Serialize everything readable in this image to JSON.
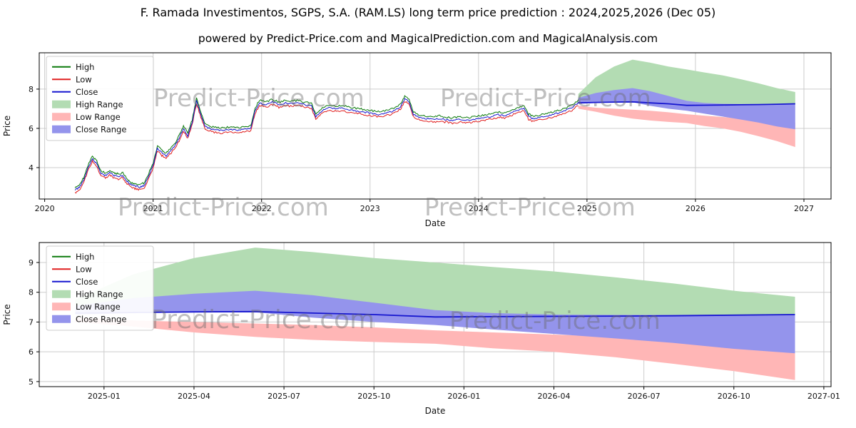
{
  "title": "F. Ramada Investimentos, SGPS, S.A. (RAM.LS) long term price prediction : 2024,2025,2026 (Dec 05)",
  "subtitle": "powered by Predict-Price.com and MagicalPrediction.com and MagicalAnalysis.com",
  "watermark_text": "Predict-Price.com",
  "colors": {
    "high": "#0b7a0b",
    "low": "#e01f1f",
    "close": "#1717cf",
    "high_range": "#b3dcb3",
    "low_range": "#ffb6b6",
    "close_range": "#9494ec",
    "grid": "#cccccc",
    "axis": "#000000",
    "tick_text": "#111111"
  },
  "chart_data": [
    {
      "type": "line",
      "name": "price-history-and-forecast",
      "title": "",
      "xlabel": "Date",
      "ylabel": "Price",
      "xlim": [
        2019.95,
        2027.25
      ],
      "ylim": [
        2.4,
        9.85
      ],
      "yticks": [
        4,
        6,
        8
      ],
      "xticks": [
        {
          "v": 2020,
          "label": "2020"
        },
        {
          "v": 2021,
          "label": "2021"
        },
        {
          "v": 2022,
          "label": "2022"
        },
        {
          "v": 2023,
          "label": "2023"
        },
        {
          "v": 2024,
          "label": "2024"
        },
        {
          "v": 2025,
          "label": "2025"
        },
        {
          "v": 2026,
          "label": "2026"
        },
        {
          "v": 2027,
          "label": "2027"
        }
      ],
      "legend": [
        "High",
        "Low",
        "Close",
        "High Range",
        "Low Range",
        "Close Range"
      ],
      "legend_position": "upper left",
      "grid": true,
      "history": {
        "x": [
          2020.28,
          2020.32,
          2020.36,
          2020.4,
          2020.44,
          2020.48,
          2020.52,
          2020.56,
          2020.6,
          2020.64,
          2020.68,
          2020.72,
          2020.76,
          2020.8,
          2020.84,
          2020.88,
          2020.92,
          2020.96,
          2021.0,
          2021.04,
          2021.08,
          2021.12,
          2021.16,
          2021.2,
          2021.24,
          2021.28,
          2021.32,
          2021.36,
          2021.4,
          2021.44,
          2021.48,
          2021.54,
          2021.6,
          2021.66,
          2021.72,
          2021.78,
          2021.84,
          2021.9,
          2021.94,
          2021.98,
          2022.04,
          2022.1,
          2022.16,
          2022.22,
          2022.28,
          2022.34,
          2022.4,
          2022.46,
          2022.5,
          2022.56,
          2022.62,
          2022.68,
          2022.74,
          2022.8,
          2022.86,
          2022.92,
          2022.98,
          2023.04,
          2023.1,
          2023.16,
          2023.22,
          2023.28,
          2023.32,
          2023.36,
          2023.4,
          2023.46,
          2023.52,
          2023.58,
          2023.64,
          2023.7,
          2023.76,
          2023.82,
          2023.88,
          2023.94,
          2024.0,
          2024.06,
          2024.12,
          2024.18,
          2024.24,
          2024.3,
          2024.36,
          2024.42,
          2024.46,
          2024.5,
          2024.56,
          2024.62,
          2024.68,
          2024.74,
          2024.8,
          2024.86,
          2024.92
        ],
        "close": [
          2.85,
          3.0,
          3.35,
          4.0,
          4.45,
          4.2,
          3.7,
          3.6,
          3.75,
          3.6,
          3.55,
          3.6,
          3.3,
          3.1,
          3.05,
          3.0,
          3.1,
          3.6,
          4.1,
          5.0,
          4.75,
          4.6,
          4.85,
          5.1,
          5.5,
          6.0,
          5.6,
          6.3,
          7.4,
          6.7,
          6.1,
          5.95,
          5.9,
          5.9,
          5.95,
          5.9,
          5.95,
          6.0,
          6.9,
          7.3,
          7.2,
          7.35,
          7.2,
          7.3,
          7.25,
          7.3,
          7.2,
          7.15,
          6.6,
          6.9,
          7.05,
          7.0,
          7.05,
          6.95,
          6.9,
          6.85,
          6.8,
          6.75,
          6.7,
          6.8,
          6.9,
          7.1,
          7.5,
          7.35,
          6.7,
          6.55,
          6.5,
          6.45,
          6.5,
          6.45,
          6.4,
          6.45,
          6.4,
          6.45,
          6.5,
          6.55,
          6.6,
          6.7,
          6.65,
          6.8,
          6.9,
          7.05,
          6.6,
          6.5,
          6.55,
          6.6,
          6.7,
          6.8,
          6.9,
          7.05,
          7.3
        ],
        "high_offset": 0.13,
        "low_offset": -0.13,
        "jitter": 0.1
      },
      "forecast": {
        "x": [
          2024.92,
          2025.08,
          2025.25,
          2025.42,
          2025.58,
          2025.75,
          2025.92,
          2026.08,
          2026.25,
          2026.42,
          2026.58,
          2026.75,
          2026.92
        ],
        "close": [
          7.3,
          7.32,
          7.34,
          7.35,
          7.3,
          7.25,
          7.17,
          7.18,
          7.19,
          7.2,
          7.21,
          7.23,
          7.25
        ],
        "close_upper": [
          7.55,
          7.8,
          7.95,
          8.05,
          7.9,
          7.65,
          7.4,
          7.3,
          7.25,
          7.24,
          7.24,
          7.25,
          7.25
        ],
        "close_lower": [
          7.25,
          7.3,
          7.32,
          7.33,
          7.15,
          7.0,
          6.9,
          6.75,
          6.6,
          6.45,
          6.3,
          6.1,
          5.95
        ],
        "high_upper": [
          7.75,
          8.6,
          9.15,
          9.5,
          9.35,
          9.15,
          9.0,
          8.85,
          8.7,
          8.5,
          8.3,
          8.05,
          7.85
        ],
        "low_upper": [
          7.15,
          7.05,
          7.0,
          6.95,
          6.9,
          6.82,
          6.72,
          6.65,
          6.58,
          6.5,
          6.45,
          6.38,
          6.3
        ],
        "low_lower": [
          7.0,
          6.85,
          6.65,
          6.5,
          6.4,
          6.33,
          6.27,
          6.12,
          6.0,
          5.82,
          5.6,
          5.35,
          5.05
        ]
      }
    },
    {
      "type": "line",
      "name": "forecast-detail",
      "title": "",
      "xlabel": "Date",
      "ylabel": "Price",
      "xlim": [
        2024.82,
        2027.02
      ],
      "ylim": [
        4.83,
        9.67
      ],
      "yticks": [
        5,
        6,
        7,
        8,
        9
      ],
      "xticks": [
        {
          "v": 2025.0,
          "label": "2025-01"
        },
        {
          "v": 2025.25,
          "label": "2025-04"
        },
        {
          "v": 2025.5,
          "label": "2025-07"
        },
        {
          "v": 2025.75,
          "label": "2025-10"
        },
        {
          "v": 2026.0,
          "label": "2026-01"
        },
        {
          "v": 2026.25,
          "label": "2026-04"
        },
        {
          "v": 2026.5,
          "label": "2026-07"
        },
        {
          "v": 2026.75,
          "label": "2026-10"
        },
        {
          "v": 2027.0,
          "label": "2027-01"
        }
      ],
      "legend": [
        "High",
        "Low",
        "Close",
        "High Range",
        "Low Range",
        "Close Range"
      ],
      "legend_position": "upper left",
      "grid": true,
      "forecast": {
        "x": [
          2024.92,
          2025.08,
          2025.25,
          2025.42,
          2025.58,
          2025.75,
          2025.92,
          2026.08,
          2026.25,
          2026.42,
          2026.58,
          2026.75,
          2026.92
        ],
        "close": [
          7.3,
          7.32,
          7.34,
          7.35,
          7.3,
          7.25,
          7.17,
          7.18,
          7.19,
          7.2,
          7.21,
          7.23,
          7.25
        ],
        "close_upper": [
          7.55,
          7.8,
          7.95,
          8.05,
          7.9,
          7.65,
          7.4,
          7.3,
          7.25,
          7.24,
          7.24,
          7.25,
          7.25
        ],
        "close_lower": [
          7.25,
          7.3,
          7.32,
          7.33,
          7.15,
          7.0,
          6.9,
          6.75,
          6.6,
          6.45,
          6.3,
          6.1,
          5.95
        ],
        "high_upper": [
          7.75,
          8.6,
          9.15,
          9.5,
          9.35,
          9.15,
          9.0,
          8.85,
          8.7,
          8.5,
          8.3,
          8.05,
          7.85
        ],
        "low_upper": [
          7.15,
          7.05,
          7.0,
          6.95,
          6.9,
          6.82,
          6.72,
          6.65,
          6.58,
          6.5,
          6.45,
          6.38,
          6.3
        ],
        "low_lower": [
          7.0,
          6.85,
          6.65,
          6.5,
          6.4,
          6.33,
          6.27,
          6.12,
          6.0,
          5.82,
          5.6,
          5.35,
          5.05
        ]
      }
    }
  ]
}
